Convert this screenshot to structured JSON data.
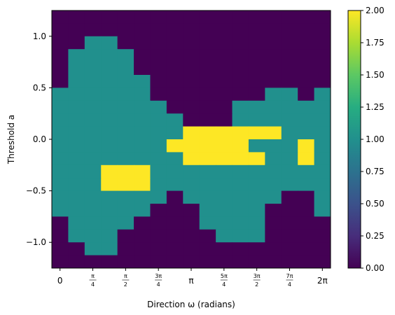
{
  "chart_data": {
    "type": "heatmap",
    "title": "",
    "xlabel": "Direction ω (radians)",
    "ylabel": "Threshold a",
    "xlim": [
      -0.19635,
      6.47953
    ],
    "ylim": [
      -1.25,
      1.25
    ],
    "x_ticks": [
      {
        "value": 0,
        "label": "0"
      },
      {
        "value": 0.7854,
        "label": "π/4"
      },
      {
        "value": 1.5708,
        "label": "π/2"
      },
      {
        "value": 2.3562,
        "label": "3π/4"
      },
      {
        "value": 3.1416,
        "label": "π"
      },
      {
        "value": 3.927,
        "label": "5π/4"
      },
      {
        "value": 4.7124,
        "label": "3π/2"
      },
      {
        "value": 5.4978,
        "label": "7π/4"
      },
      {
        "value": 6.2832,
        "label": "2π"
      }
    ],
    "y_ticks": [
      {
        "value": 1.0,
        "label": "1.0"
      },
      {
        "value": 0.5,
        "label": "0.5"
      },
      {
        "value": 0.0,
        "label": "0.0"
      },
      {
        "value": -0.5,
        "label": "−0.5"
      },
      {
        "value": -1.0,
        "label": "−1.0"
      }
    ],
    "x_centers": [
      0,
      0.3927,
      0.7854,
      1.1781,
      1.5708,
      1.9635,
      2.3562,
      2.7489,
      3.1416,
      3.5343,
      3.927,
      4.3197,
      4.7124,
      5.1051,
      5.4978,
      5.8905,
      6.2832
    ],
    "y_centers": [
      1.1875,
      1.0625,
      0.9375,
      0.8125,
      0.6875,
      0.5625,
      0.4375,
      0.3125,
      0.1875,
      0.0625,
      -0.0625,
      -0.1875,
      -0.3125,
      -0.4375,
      -0.5625,
      -0.6875,
      -0.8125,
      -0.9375,
      -1.0625,
      -1.1875
    ],
    "z": [
      [
        0,
        0,
        0,
        0,
        0,
        0,
        0,
        0,
        0,
        0,
        0,
        0,
        0,
        0,
        0,
        0,
        0
      ],
      [
        0,
        0,
        0,
        0,
        0,
        0,
        0,
        0,
        0,
        0,
        0,
        0,
        0,
        0,
        0,
        0,
        0
      ],
      [
        0,
        0,
        1,
        1,
        0,
        0,
        0,
        0,
        0,
        0,
        0,
        0,
        0,
        0,
        0,
        0,
        0
      ],
      [
        0,
        1,
        1,
        1,
        1,
        0,
        0,
        0,
        0,
        0,
        0,
        0,
        0,
        0,
        0,
        0,
        0
      ],
      [
        0,
        1,
        1,
        1,
        1,
        0,
        0,
        0,
        0,
        0,
        0,
        0,
        0,
        0,
        0,
        0,
        0
      ],
      [
        0,
        1,
        1,
        1,
        1,
        1,
        0,
        0,
        0,
        0,
        0,
        0,
        0,
        0,
        0,
        0,
        0
      ],
      [
        1,
        1,
        1,
        1,
        1,
        1,
        0,
        0,
        0,
        0,
        0,
        0,
        0,
        1,
        1,
        0,
        1
      ],
      [
        1,
        1,
        1,
        1,
        1,
        1,
        1,
        0,
        0,
        0,
        0,
        1,
        1,
        1,
        1,
        1,
        1
      ],
      [
        1,
        1,
        1,
        1,
        1,
        1,
        1,
        1,
        0,
        0,
        0,
        1,
        1,
        1,
        1,
        1,
        1
      ],
      [
        1,
        1,
        1,
        1,
        1,
        1,
        1,
        1,
        2,
        2,
        2,
        2,
        2,
        2,
        1,
        1,
        1
      ],
      [
        1,
        1,
        1,
        1,
        1,
        1,
        1,
        2,
        2,
        2,
        2,
        2,
        1,
        1,
        1,
        2,
        1
      ],
      [
        1,
        1,
        1,
        1,
        1,
        1,
        1,
        1,
        2,
        2,
        2,
        2,
        2,
        1,
        1,
        2,
        1
      ],
      [
        1,
        1,
        1,
        2,
        2,
        2,
        1,
        1,
        1,
        1,
        1,
        1,
        1,
        1,
        1,
        1,
        1
      ],
      [
        1,
        1,
        1,
        2,
        2,
        2,
        1,
        1,
        1,
        1,
        1,
        1,
        1,
        1,
        1,
        1,
        1
      ],
      [
        1,
        1,
        1,
        1,
        1,
        1,
        1,
        0,
        1,
        1,
        1,
        1,
        1,
        1,
        0,
        0,
        1
      ],
      [
        1,
        1,
        1,
        1,
        1,
        1,
        0,
        0,
        0,
        1,
        1,
        1,
        1,
        0,
        0,
        0,
        1
      ],
      [
        0,
        1,
        1,
        1,
        1,
        0,
        0,
        0,
        0,
        1,
        1,
        1,
        1,
        0,
        0,
        0,
        0
      ],
      [
        0,
        1,
        1,
        1,
        0,
        0,
        0,
        0,
        0,
        0,
        1,
        1,
        1,
        0,
        0,
        0,
        0
      ],
      [
        0,
        0,
        1,
        1,
        0,
        0,
        0,
        0,
        0,
        0,
        0,
        0,
        0,
        0,
        0,
        0,
        0
      ],
      [
        0,
        0,
        0,
        0,
        0,
        0,
        0,
        0,
        0,
        0,
        0,
        0,
        0,
        0,
        0,
        0,
        0
      ]
    ],
    "colormap": "viridis",
    "colors": {
      "0": "#440154",
      "1": "#21908d",
      "2": "#fde725"
    },
    "colorbar": {
      "min": 0,
      "max": 2,
      "ticks": [
        {
          "value": 0.0,
          "label": "0.00"
        },
        {
          "value": 0.25,
          "label": "0.25"
        },
        {
          "value": 0.5,
          "label": "0.50"
        },
        {
          "value": 0.75,
          "label": "0.75"
        },
        {
          "value": 1.0,
          "label": "1.00"
        },
        {
          "value": 1.25,
          "label": "1.25"
        },
        {
          "value": 1.5,
          "label": "1.50"
        },
        {
          "value": 1.75,
          "label": "1.75"
        },
        {
          "value": 2.0,
          "label": "2.00"
        }
      ]
    },
    "grid": false,
    "legend": "none"
  }
}
